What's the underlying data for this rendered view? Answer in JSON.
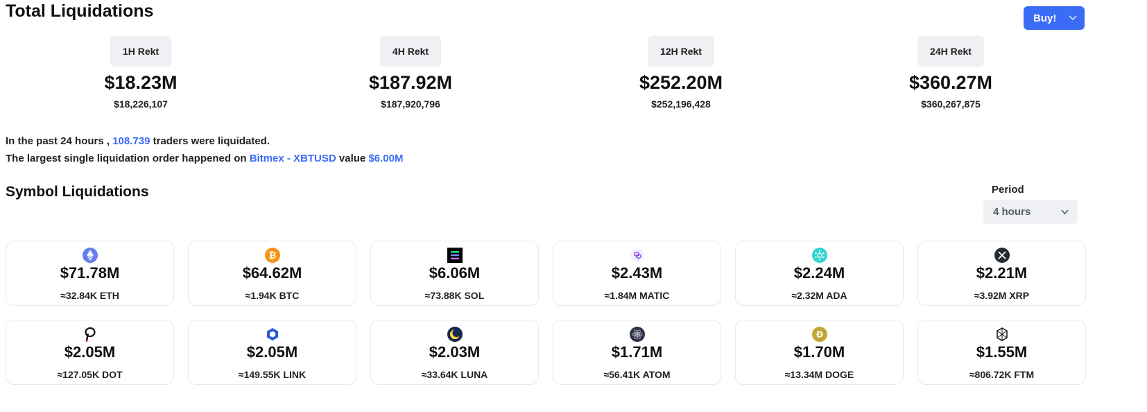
{
  "header": {
    "title": "Total Liquidations",
    "buy_label": "Buy!"
  },
  "rekt": [
    {
      "label": "1H Rekt",
      "value": "$18.23M",
      "exact": "$18,226,107"
    },
    {
      "label": "4H Rekt",
      "value": "$187.92M",
      "exact": "$187,920,796"
    },
    {
      "label": "12H Rekt",
      "value": "$252.20M",
      "exact": "$252,196,428"
    },
    {
      "label": "24H Rekt",
      "value": "$360.27M",
      "exact": "$360,267,875"
    }
  ],
  "summary": {
    "line1_prefix": "In the past 24 hours , ",
    "traders": "108.739",
    "line1_suffix": " traders were liquidated.",
    "line2_prefix": "The largest single liquidation order happened on ",
    "exchange_pair": "Bitmex - XBTUSD",
    "line2_mid": " value ",
    "largest_value": "$6.00M"
  },
  "symbols": {
    "title": "Symbol Liquidations",
    "period_label": "Period",
    "period_value": "4 hours",
    "cards": [
      {
        "icon": "eth-icon",
        "value": "$71.78M",
        "amount": "≈32.84K ETH"
      },
      {
        "icon": "btc-icon",
        "value": "$64.62M",
        "amount": "≈1.94K BTC"
      },
      {
        "icon": "sol-icon",
        "value": "$6.06M",
        "amount": "≈73.88K SOL"
      },
      {
        "icon": "matic-icon",
        "value": "$2.43M",
        "amount": "≈1.84M MATIC"
      },
      {
        "icon": "ada-icon",
        "value": "$2.24M",
        "amount": "≈2.32M ADA"
      },
      {
        "icon": "xrp-icon",
        "value": "$2.21M",
        "amount": "≈3.92M XRP"
      },
      {
        "icon": "dot-icon",
        "value": "$2.05M",
        "amount": "≈127.05K DOT"
      },
      {
        "icon": "link-icon",
        "value": "$2.05M",
        "amount": "≈149.55K LINK"
      },
      {
        "icon": "luna-icon",
        "value": "$2.03M",
        "amount": "≈33.64K LUNA"
      },
      {
        "icon": "atom-icon",
        "value": "$1.71M",
        "amount": "≈56.41K ATOM"
      },
      {
        "icon": "doge-icon",
        "value": "$1.70M",
        "amount": "≈13.34M DOGE"
      },
      {
        "icon": "ftm-icon",
        "value": "$1.55M",
        "amount": "≈806.72K FTM"
      }
    ]
  },
  "colors": {
    "accent": "#3b6cf6",
    "pill_bg": "#eef0f3",
    "card_border": "#e6e8eb"
  }
}
